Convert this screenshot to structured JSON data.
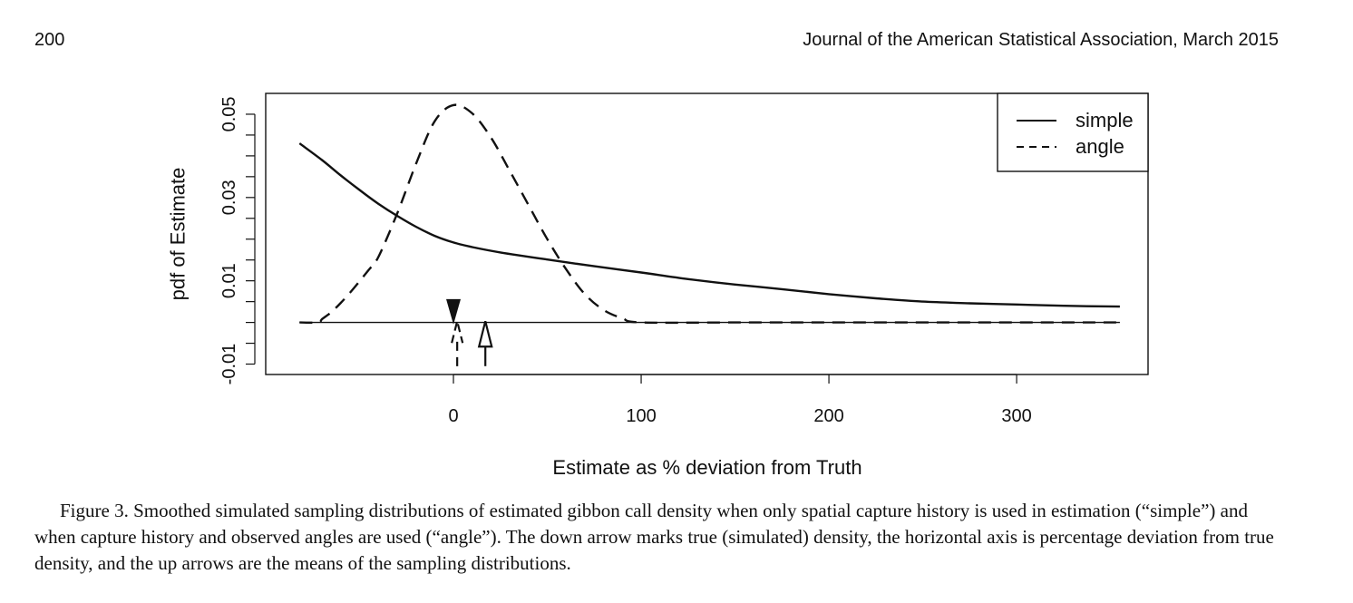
{
  "header": {
    "page_number": "200",
    "journal": "Journal of the American Statistical Association, March 2015"
  },
  "caption": {
    "label": "Figure 3.",
    "text": "Smoothed simulated sampling distributions of estimated gibbon call density when only spatial capture history is used in estimation (“simple”) and when capture history and observed angles are used (“angle”). The down arrow marks true (simulated) density, the horizontal axis is percentage deviation from true density, and the up arrows are the means of the sampling distributions."
  },
  "chart_data": {
    "type": "line",
    "title": "",
    "xlabel": "Estimate as % deviation from Truth",
    "ylabel": "pdf of Estimate",
    "xlim": [
      -100,
      370
    ],
    "ylim": [
      -0.0125,
      0.055
    ],
    "x_ticks": [
      0,
      100,
      200,
      300
    ],
    "x_tick_labels": [
      "0",
      "100",
      "200",
      "300"
    ],
    "y_ticks": [
      -0.01,
      -0.005,
      0,
      0.005,
      0.01,
      0.015,
      0.02,
      0.025,
      0.03,
      0.035,
      0.04,
      0.045,
      0.05
    ],
    "y_tick_labels": [
      "-0.01",
      "0.01",
      "0.03",
      "0.05"
    ],
    "y_tick_label_values": [
      -0.01,
      0.01,
      0.03,
      0.05
    ],
    "grid": false,
    "legend": {
      "placement": "top-right",
      "entries": [
        "simple",
        "angle"
      ]
    },
    "baseline": 0,
    "series": [
      {
        "name": "simple",
        "line_style": "solid",
        "x": [
          -82,
          -70,
          -60,
          -50,
          -40,
          -30,
          -20,
          -10,
          0,
          10,
          25,
          50,
          75,
          100,
          125,
          150,
          175,
          200,
          225,
          250,
          275,
          300,
          325,
          355
        ],
        "y": [
          0.043,
          0.039,
          0.0353,
          0.0318,
          0.0285,
          0.0256,
          0.023,
          0.0208,
          0.0192,
          0.0181,
          0.0168,
          0.0151,
          0.0135,
          0.012,
          0.0104,
          0.0091,
          0.008,
          0.0068,
          0.0058,
          0.005,
          0.0046,
          0.0043,
          0.004,
          0.0038
        ]
      },
      {
        "name": "angle",
        "line_style": "dashed",
        "x": [
          -82,
          -72,
          -70,
          -65,
          -60,
          -55,
          -50,
          -45,
          -40,
          -30,
          -20,
          -10,
          0,
          10,
          20,
          30,
          40,
          50,
          60,
          70,
          80,
          90,
          100,
          150,
          200,
          250,
          300,
          355
        ],
        "y": [
          0.0,
          0.0,
          0.0008,
          0.0025,
          0.0047,
          0.0072,
          0.0099,
          0.0127,
          0.0157,
          0.0261,
          0.038,
          0.0483,
          0.0522,
          0.0502,
          0.0444,
          0.0364,
          0.0282,
          0.02,
          0.0128,
          0.0068,
          0.003,
          0.001,
          0.0,
          0.0,
          0.0,
          0.0,
          0.0,
          0.0
        ]
      }
    ],
    "annotations": [
      {
        "type": "down-arrow",
        "label": "true density",
        "x": 0,
        "y_from": 0.0052,
        "y_to": -0.0005
      },
      {
        "type": "up-arrow",
        "label": "mean of simple",
        "x": 17,
        "y_from": -0.0105,
        "y_to": 0.0003
      },
      {
        "type": "dashed-up-arrow",
        "label": "mean of angle",
        "x": 2,
        "y_from": -0.0105,
        "y_to": 0.0003
      }
    ]
  }
}
